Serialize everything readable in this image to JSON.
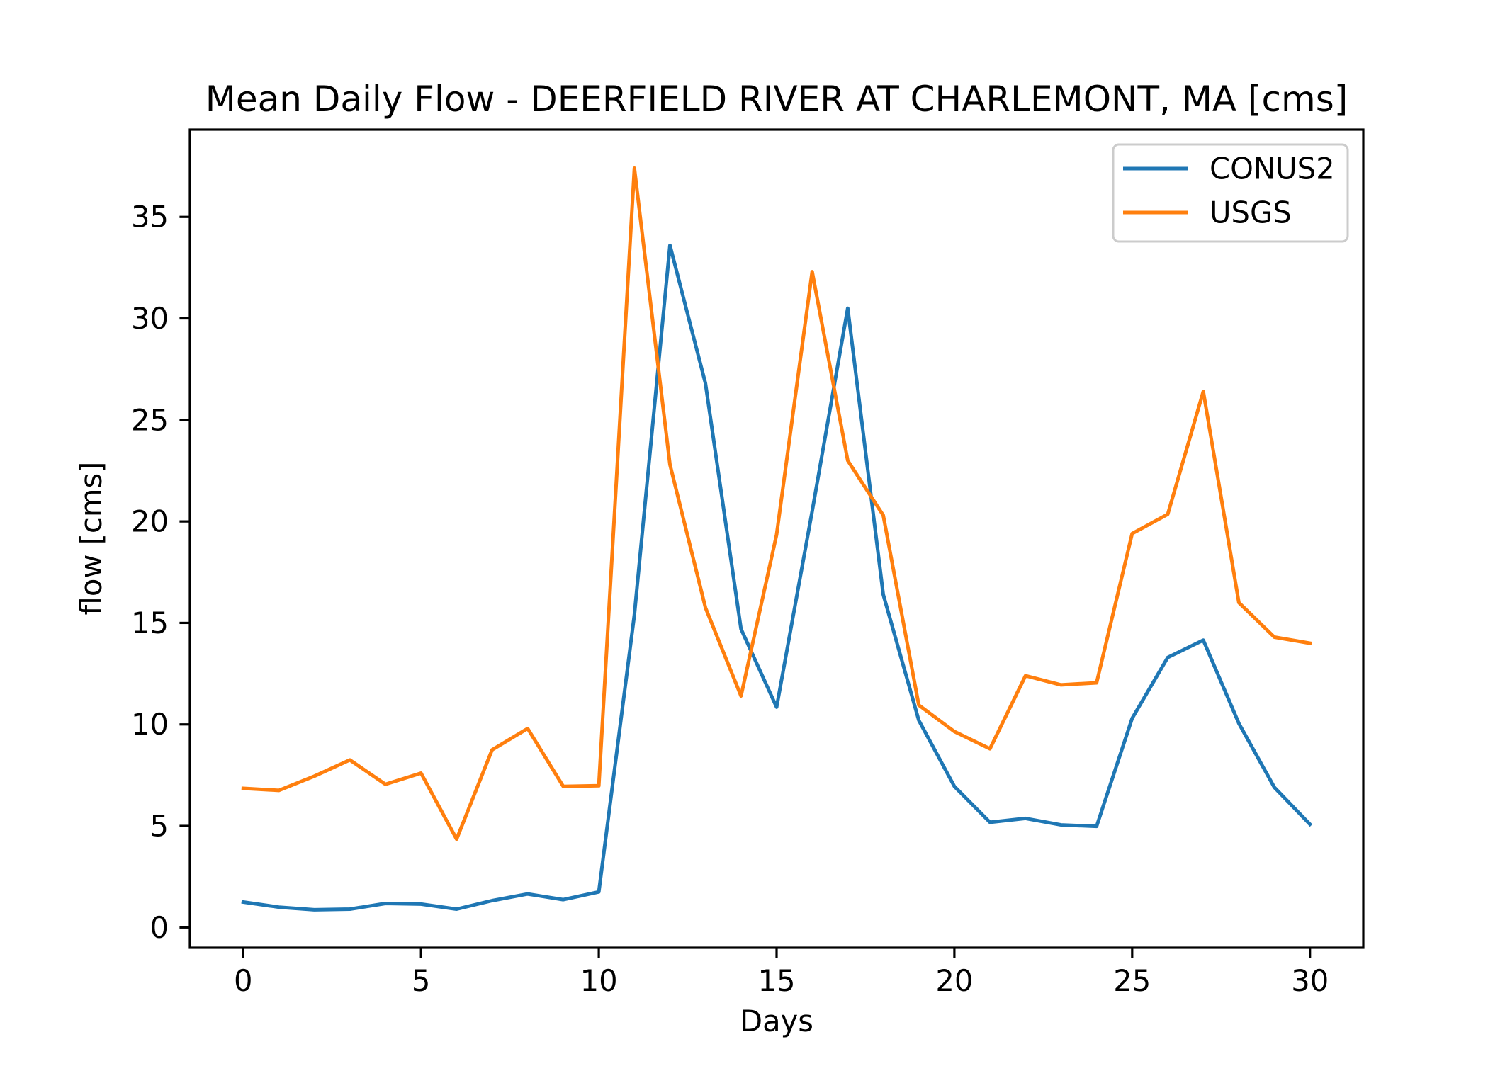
{
  "chart_data": {
    "type": "line",
    "title": "Mean Daily Flow - DEERFIELD RIVER AT CHARLEMONT, MA [cms]",
    "xlabel": "Days",
    "ylabel": "flow [cms]",
    "x": [
      0,
      1,
      2,
      3,
      4,
      5,
      6,
      7,
      8,
      9,
      10,
      11,
      12,
      13,
      14,
      15,
      16,
      17,
      18,
      19,
      20,
      21,
      22,
      23,
      24,
      25,
      26,
      27,
      28,
      29,
      30
    ],
    "series": [
      {
        "name": "CONUS2",
        "color": "#1f77b4",
        "values": [
          1.25,
          1.0,
          0.87,
          0.9,
          1.18,
          1.15,
          0.9,
          1.32,
          1.65,
          1.37,
          1.75,
          15.4,
          33.6,
          26.8,
          14.7,
          10.85,
          20.5,
          30.5,
          16.4,
          10.2,
          6.95,
          5.18,
          5.37,
          5.05,
          4.98,
          10.3,
          13.3,
          14.15,
          10.05,
          6.9,
          5.08
        ]
      },
      {
        "name": "USGS",
        "color": "#ff7f0e",
        "values": [
          6.85,
          6.75,
          7.45,
          8.25,
          7.05,
          7.6,
          4.35,
          8.75,
          9.8,
          6.95,
          6.98,
          37.4,
          22.8,
          15.75,
          11.4,
          19.35,
          32.3,
          23.0,
          20.3,
          10.95,
          9.65,
          8.8,
          12.4,
          11.95,
          12.05,
          19.4,
          20.35,
          26.4,
          16.0,
          14.3,
          14.0
        ]
      }
    ],
    "xlim": [
      -1.5,
      31.5
    ],
    "ylim": [
      -1.0,
      39.3
    ],
    "xticks": [
      0,
      5,
      10,
      15,
      20,
      25,
      30
    ],
    "yticks": [
      0,
      5,
      10,
      15,
      20,
      25,
      30,
      35
    ],
    "grid": false,
    "legend": {
      "placement": "top-right"
    }
  }
}
